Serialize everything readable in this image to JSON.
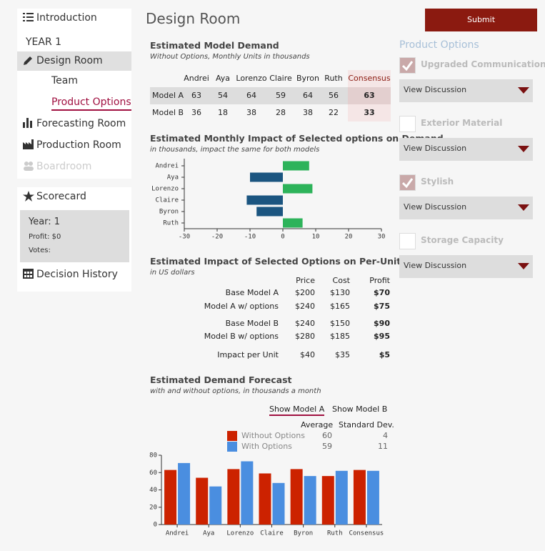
{
  "sidebar": {
    "nav": [
      "Introduction",
      "YEAR 1",
      "Design Room",
      "Team",
      "Product Options",
      "Forecasting Room",
      "Production Room",
      "Boardroom"
    ],
    "scorecard": {
      "title": "Scorecard",
      "year": "Year: 1",
      "profit": "Profit: $0",
      "votes": "Votes:"
    },
    "decision_history": "Decision History"
  },
  "header": {
    "title": "Design Room",
    "submit": "Submit"
  },
  "demand_table": {
    "title": "Estimated Model Demand",
    "subtitle": "Without Options, Monthly Units in thousands",
    "columns": [
      "Andrei",
      "Aya",
      "Lorenzo",
      "Claire",
      "Byron",
      "Ruth",
      "Consensus"
    ],
    "rows": [
      [
        "Model A",
        63,
        54,
        64,
        59,
        64,
        56,
        63
      ],
      [
        "Model B",
        36,
        18,
        38,
        28,
        38,
        22,
        33
      ]
    ]
  },
  "profit_table": {
    "title": "Estimated Impact of Selected Options on Per-Unit Profit",
    "subtitle": "in US dollars",
    "columns": [
      "Price",
      "Cost",
      "Profit"
    ],
    "rows": [
      [
        "Base Model A",
        "$200",
        "$130",
        "$70"
      ],
      [
        "Model A w/ options",
        "$240",
        "$165",
        "$75"
      ],
      [
        "Base Model B",
        "$240",
        "$150",
        "$90"
      ],
      [
        "Model B w/ options",
        "$280",
        "$185",
        "$95"
      ],
      [
        "Impact per Unit",
        "$40",
        "$35",
        "$5"
      ]
    ]
  },
  "chart_data": [
    {
      "type": "hbar",
      "title": "Estimated Monthly Impact of Selected options on Demand",
      "subtitle": "in thousands, impact the same for both models",
      "categories": [
        "Andrei",
        "Aya",
        "Lorenzo",
        "Claire",
        "Byron",
        "Ruth"
      ],
      "values": [
        8,
        -10,
        9,
        -11,
        -8,
        6
      ],
      "positive_color": "#2db35a",
      "negative_color": "#1b5580",
      "xlim": [
        -30,
        30
      ],
      "xticks": [
        -30,
        -20,
        -10,
        0,
        10,
        20,
        30
      ]
    },
    {
      "type": "bar",
      "title": "Estimated Demand Forecast",
      "subtitle": "with and without options, in thousands a month",
      "tabs": [
        "Show Model A",
        "Show Model B"
      ],
      "stat_columns": [
        "Average",
        "Standard Dev."
      ],
      "categories": [
        "Andrei",
        "Aya",
        "Lorenzo",
        "Claire",
        "Byron",
        "Ruth",
        "Consensus"
      ],
      "series": [
        {
          "name": "Without Options",
          "color": "#cc2200",
          "values": [
            63,
            54,
            64,
            59,
            64,
            56,
            63
          ],
          "average": 60,
          "std_dev": 4
        },
        {
          "name": "With Options",
          "color": "#4a8ee0",
          "values": [
            71,
            44,
            73,
            48,
            56,
            62,
            62
          ],
          "average": 59,
          "std_dev": 11
        }
      ],
      "ylim": [
        0,
        80
      ],
      "yticks": [
        0,
        20,
        40,
        60,
        80
      ]
    }
  ],
  "product_options": {
    "title": "Product Options",
    "items": [
      {
        "label": "Upgraded Communication",
        "checked": true,
        "action": "View Discussion"
      },
      {
        "label": "Exterior Material",
        "checked": false,
        "action": "View Discussion"
      },
      {
        "label": "Stylish",
        "checked": true,
        "action": "View Discussion"
      },
      {
        "label": "Storage Capacity",
        "checked": false,
        "action": "View Discussion"
      }
    ]
  }
}
